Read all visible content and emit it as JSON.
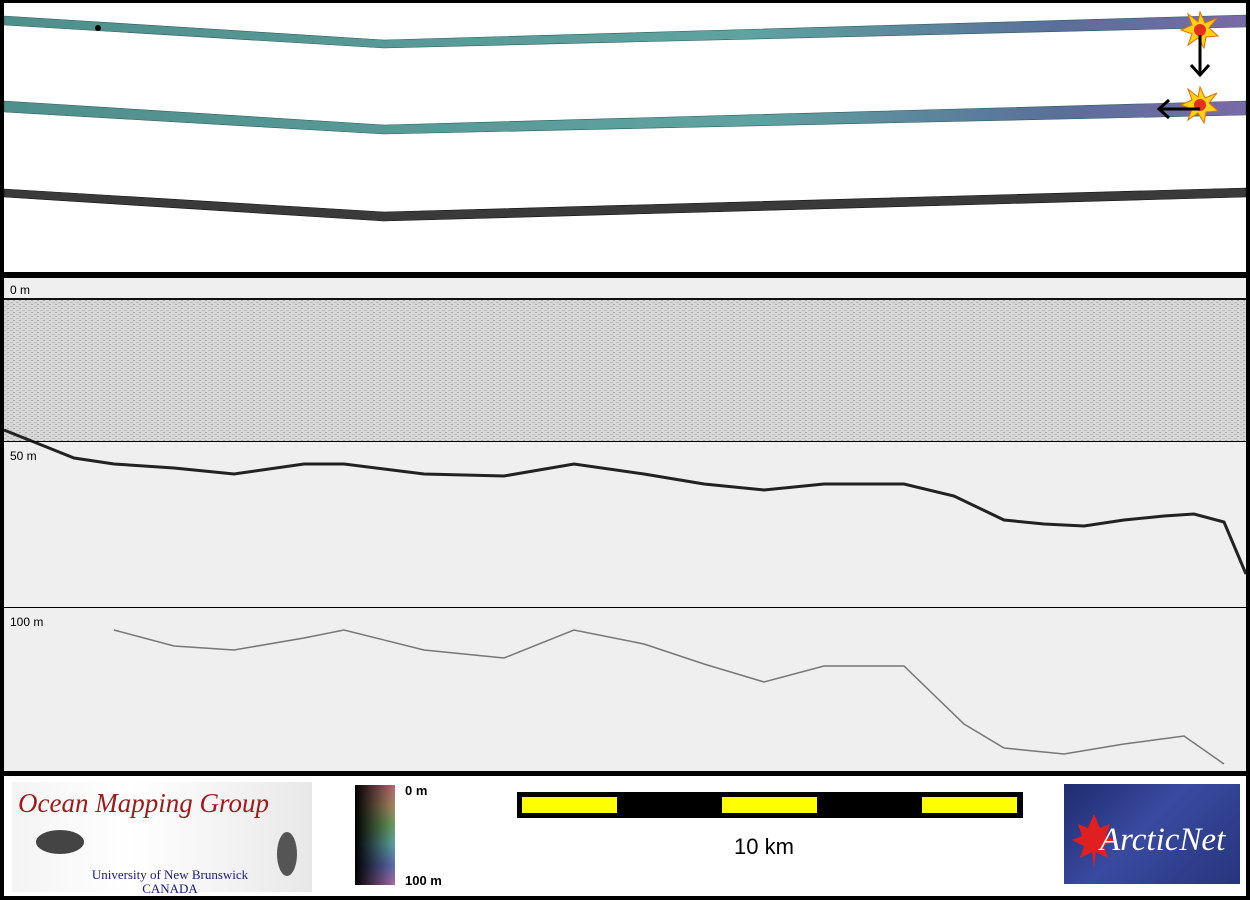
{
  "profile": {
    "depth_labels": [
      "0 m",
      "50 m",
      "100 m"
    ]
  },
  "legend": {
    "colorbar_top": "0 m",
    "colorbar_bottom": "100 m",
    "scale_label": "10 km"
  },
  "logos": {
    "omg_title": "Ocean Mapping Group",
    "omg_university": "University of New Brunswick",
    "omg_country": "CANADA",
    "arcticnet": "ArcticNet"
  },
  "colors": {
    "swath_teal": "#5a9e9a",
    "swath_purple": "#6a6aa0",
    "scale_yellow": "#ffff00",
    "omg_red": "#9c1c1c",
    "arctic_blue": "#25357c"
  }
}
